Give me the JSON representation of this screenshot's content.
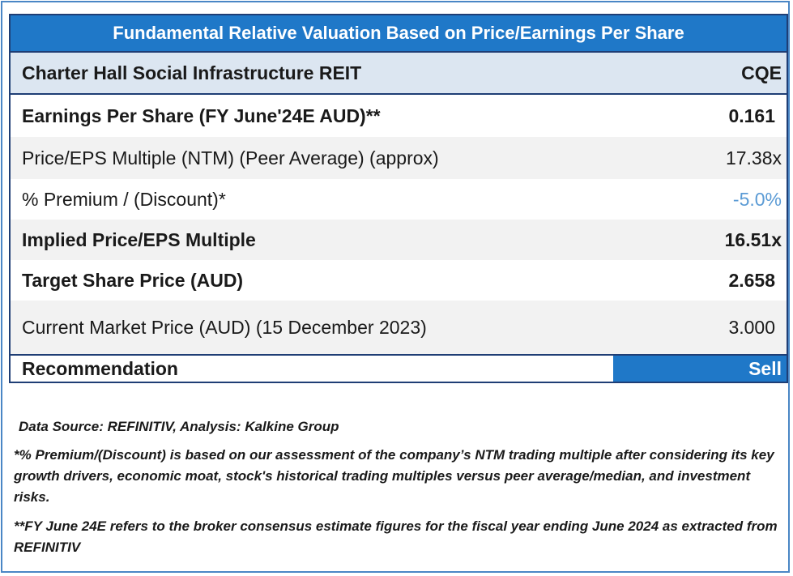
{
  "table": {
    "title": "Fundamental Relative Valuation Based on Price/Earnings Per Share",
    "company": "Charter Hall Social Infrastructure REIT",
    "ticker": "CQE",
    "rows": [
      {
        "label": "Earnings Per Share (FY June'24E AUD)**",
        "value": "0.161"
      },
      {
        "label": "Price/EPS Multiple (NTM) (Peer Average) (approx)",
        "value": "17.38x"
      },
      {
        "label": "% Premium / (Discount)*",
        "value": "-5.0%"
      },
      {
        "label": "Implied Price/EPS Multiple",
        "value": "16.51x"
      },
      {
        "label": "Target Share Price (AUD)",
        "value": "2.658"
      },
      {
        "label": "Current Market Price (AUD) (15 December 2023)",
        "value": "3.000"
      }
    ],
    "recommendation_label": "Recommendation",
    "recommendation_value": "Sell"
  },
  "notes": {
    "source": "Data Source: REFINITIV, Analysis: Kalkine Group",
    "premium_note": "*% Premium/(Discount) is based on our assessment of the company’s NTM trading multiple after considering its key growth drivers, economic moat, stock's historical trading multiples versus peer average/median, and investment risks.",
    "fy_note": "**FY June 24E refers to the broker consensus estimate figures for the fiscal year ending June 2024 as extracted from REFINITIV"
  },
  "colors": {
    "header_blue": "#1f78c8",
    "negative_blue": "#5b9bd5",
    "border": "#4a86c5"
  }
}
